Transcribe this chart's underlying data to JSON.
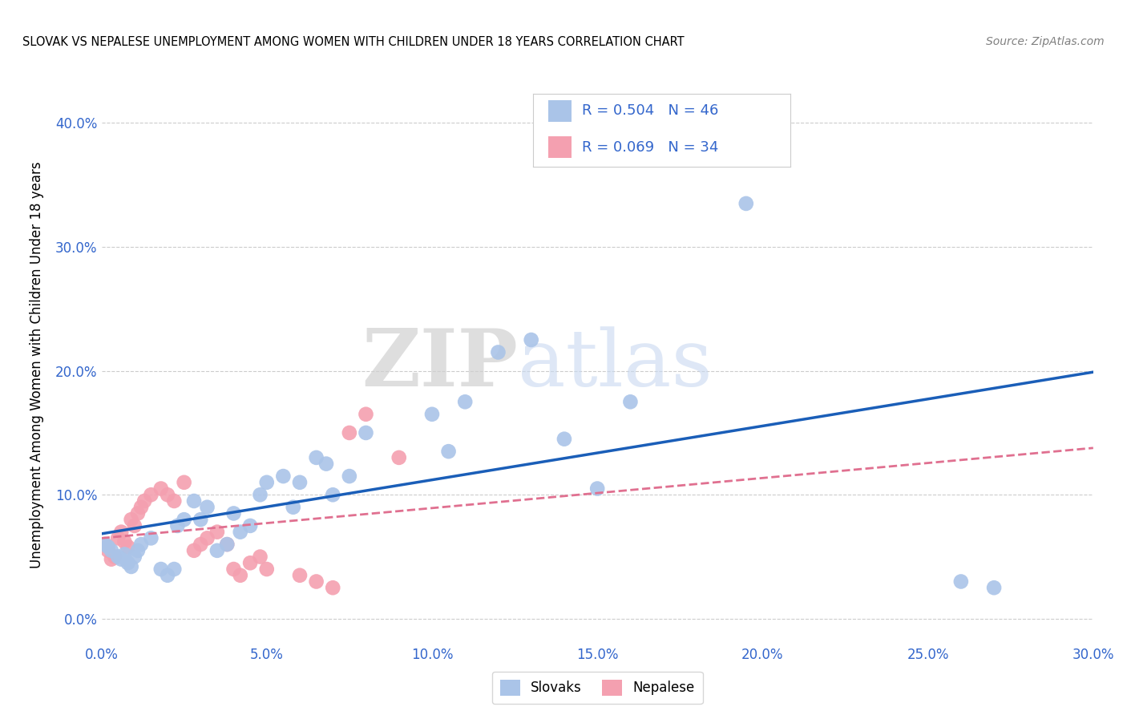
{
  "title": "SLOVAK VS NEPALESE UNEMPLOYMENT AMONG WOMEN WITH CHILDREN UNDER 18 YEARS CORRELATION CHART",
  "source": "Source: ZipAtlas.com",
  "ylabel": "Unemployment Among Women with Children Under 18 years",
  "xlim": [
    0.0,
    0.3
  ],
  "ylim": [
    -0.02,
    0.43
  ],
  "xticks": [
    0.0,
    0.05,
    0.1,
    0.15,
    0.2,
    0.25,
    0.3
  ],
  "yticks": [
    0.0,
    0.1,
    0.2,
    0.3,
    0.4
  ],
  "xtick_labels": [
    "0.0%",
    "5.0%",
    "10.0%",
    "15.0%",
    "20.0%",
    "25.0%",
    "30.0%"
  ],
  "ytick_labels": [
    "0.0%",
    "10.0%",
    "20.0%",
    "30.0%",
    "40.0%"
  ],
  "background_color": "#ffffff",
  "grid_color": "#cccccc",
  "slovak_color": "#aac4e8",
  "nepalese_color": "#f4a0b0",
  "slovak_line_color": "#1a5eb8",
  "nepalese_line_color": "#e07090",
  "slovak_R": 0.504,
  "slovak_N": 46,
  "nepalese_R": 0.069,
  "nepalese_N": 34,
  "watermark_zip": "ZIP",
  "watermark_atlas": "atlas",
  "label_color": "#3366cc",
  "legend_items": [
    "Slovaks",
    "Nepalese"
  ],
  "slovak_x": [
    0.001,
    0.002,
    0.003,
    0.005,
    0.006,
    0.007,
    0.008,
    0.009,
    0.01,
    0.011,
    0.012,
    0.015,
    0.018,
    0.02,
    0.022,
    0.023,
    0.025,
    0.028,
    0.03,
    0.032,
    0.035,
    0.038,
    0.04,
    0.042,
    0.045,
    0.048,
    0.05,
    0.055,
    0.058,
    0.06,
    0.065,
    0.068,
    0.07,
    0.075,
    0.08,
    0.1,
    0.105,
    0.11,
    0.12,
    0.13,
    0.14,
    0.15,
    0.16,
    0.195,
    0.26,
    0.27
  ],
  "slovak_y": [
    0.06,
    0.058,
    0.055,
    0.05,
    0.048,
    0.052,
    0.045,
    0.042,
    0.05,
    0.055,
    0.06,
    0.065,
    0.04,
    0.035,
    0.04,
    0.075,
    0.08,
    0.095,
    0.08,
    0.09,
    0.055,
    0.06,
    0.085,
    0.07,
    0.075,
    0.1,
    0.11,
    0.115,
    0.09,
    0.11,
    0.13,
    0.125,
    0.1,
    0.115,
    0.15,
    0.165,
    0.135,
    0.175,
    0.215,
    0.225,
    0.145,
    0.105,
    0.175,
    0.335,
    0.03,
    0.025
  ],
  "nepalese_x": [
    0.001,
    0.002,
    0.003,
    0.004,
    0.005,
    0.006,
    0.007,
    0.008,
    0.009,
    0.01,
    0.011,
    0.012,
    0.013,
    0.015,
    0.018,
    0.02,
    0.022,
    0.025,
    0.028,
    0.03,
    0.032,
    0.035,
    0.038,
    0.04,
    0.042,
    0.045,
    0.048,
    0.05,
    0.06,
    0.065,
    0.07,
    0.075,
    0.08,
    0.09
  ],
  "nepalese_y": [
    0.06,
    0.055,
    0.048,
    0.05,
    0.065,
    0.07,
    0.062,
    0.058,
    0.08,
    0.075,
    0.085,
    0.09,
    0.095,
    0.1,
    0.105,
    0.1,
    0.095,
    0.11,
    0.055,
    0.06,
    0.065,
    0.07,
    0.06,
    0.04,
    0.035,
    0.045,
    0.05,
    0.04,
    0.035,
    0.03,
    0.025,
    0.15,
    0.165,
    0.13
  ]
}
